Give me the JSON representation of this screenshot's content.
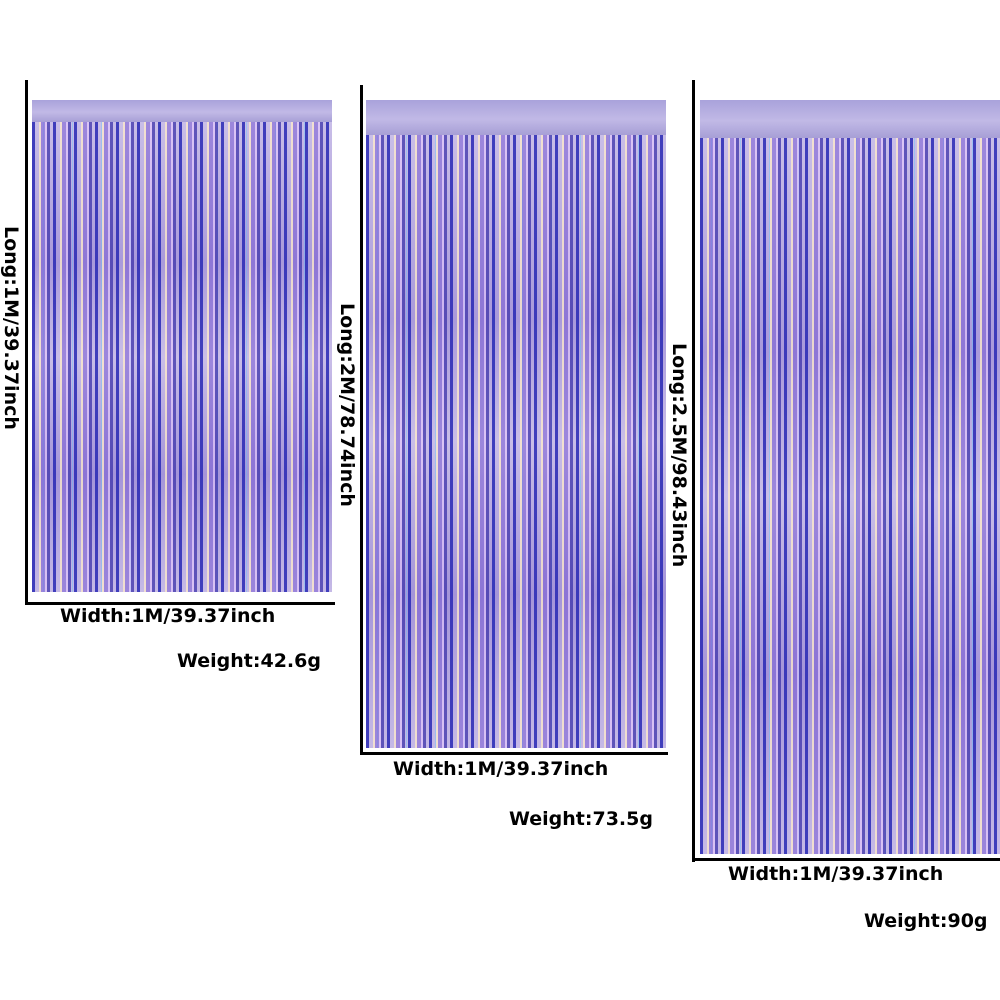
{
  "colors": {
    "curtain_primary": "#b7a8e0",
    "curtain_dark": "#2828b4",
    "axis_line": "#000000",
    "text": "#000000"
  },
  "curtains": [
    {
      "long_label": "Long:1M/39.37inch",
      "width_label": "Width:1M/39.37inch",
      "weight_label": "Weight:42.6g"
    },
    {
      "long_label": "Long:2M/78.74inch",
      "width_label": "Width:1M/39.37inch",
      "weight_label": "Weight:73.5g"
    },
    {
      "long_label": "Long:2.5M/98.43inch",
      "width_label": "Width:1M/39.37inch",
      "weight_label": "Weight:90g"
    }
  ]
}
